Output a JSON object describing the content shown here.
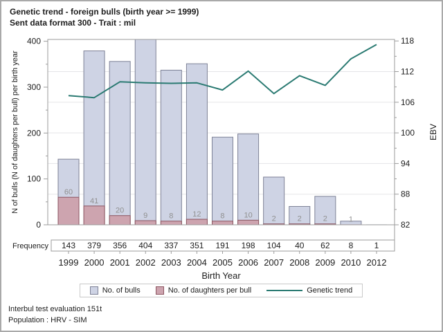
{
  "page": {
    "title_line1": "Genetic trend - foreign bulls (birth year >= 1999)",
    "title_line2": "Sent data format 300 - Trait : mil",
    "footnote_line1": "Interbul test evaluation 151t",
    "footnote_line2": "Population : HRV - SIM"
  },
  "chart_data": {
    "type": "bar",
    "description": "Overlay bar chart (two bar series on left axis) with a line series on right axis and a frequency table row below the plot",
    "categories": [
      "1999",
      "2000",
      "2001",
      "2002",
      "2003",
      "2004",
      "2005",
      "2006",
      "2007",
      "2008",
      "2009",
      "2010",
      "2012"
    ],
    "series": [
      {
        "name": "No. of bulls",
        "type": "bar",
        "axis": "left",
        "fill": "#ced3e4",
        "stroke": "#7d8196",
        "values": [
          143,
          379,
          356,
          404,
          337,
          351,
          191,
          198,
          104,
          40,
          62,
          8,
          1
        ]
      },
      {
        "name": "No. of daughters per bull",
        "type": "bar",
        "axis": "left",
        "fill": "#cda4af",
        "stroke": "#8c5560",
        "labels_color": "#909090",
        "values": [
          60,
          41,
          20,
          9,
          8,
          12,
          8,
          10,
          2,
          2,
          2,
          1,
          null
        ]
      },
      {
        "name": "Genetic trend",
        "type": "line",
        "axis": "right",
        "stroke": "#2a7a72",
        "values": [
          107.3,
          106.9,
          110,
          109.8,
          109.7,
          109.8,
          108.4,
          112.1,
          107.7,
          111.2,
          109.3,
          114.5,
          117.3
        ]
      }
    ],
    "frequency_row": {
      "label": "Frequency",
      "values": [
        "143",
        "379",
        "356",
        "404",
        "337",
        "351",
        "191",
        "198",
        "104",
        "40",
        "62",
        "8",
        "1"
      ]
    },
    "xlabel": "Birth Year",
    "ylabel_left": "N of bulls (N of daughters per bull) per birth year",
    "ylabel_right": "EBV",
    "yticks_left": [
      0,
      100,
      200,
      300,
      400
    ],
    "yticks_minor_left": [
      50,
      150,
      250,
      350
    ],
    "yticks_right": [
      82,
      88,
      94,
      100,
      106,
      112,
      118
    ],
    "yticks_minor_right": [
      85,
      91,
      97,
      103,
      109,
      115
    ],
    "ylim_left": [
      0,
      404
    ],
    "ylim_right": [
      82,
      118.3
    ],
    "grid": "horizontal gridlines at right-axis major ticks",
    "legend_position": "bottom",
    "colors": {
      "axis": "#9b9b9b",
      "grid": "#e5e5e8",
      "text": "#1c1c1c"
    }
  }
}
